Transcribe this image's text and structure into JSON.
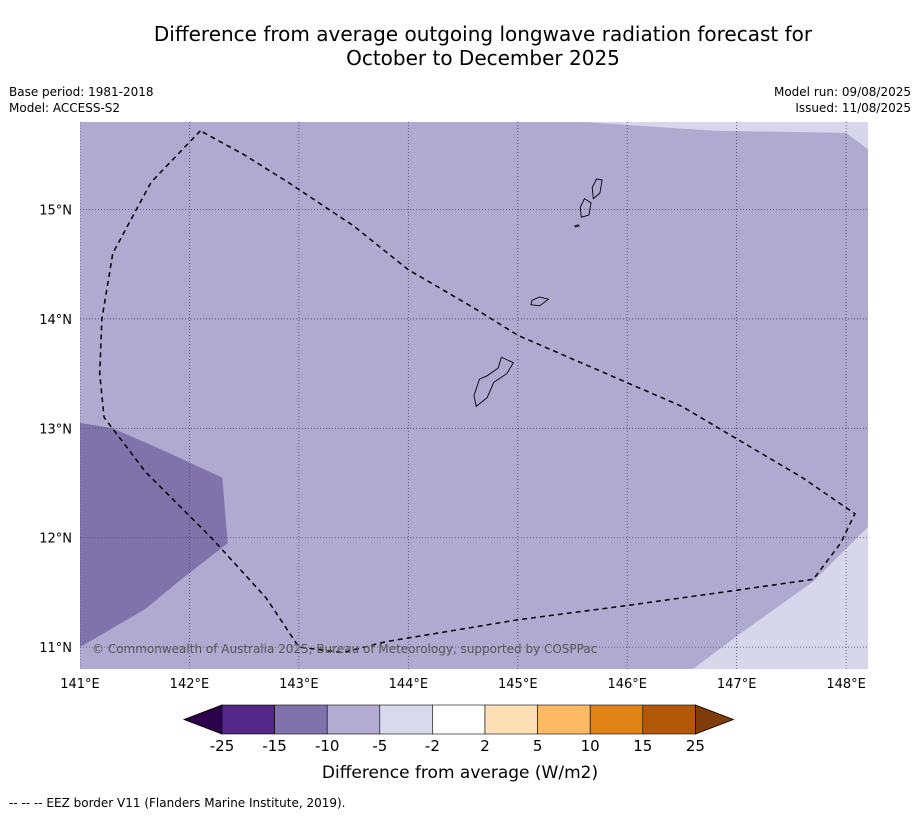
{
  "title": {
    "line1": "Difference from average outgoing longwave radiation forecast for",
    "line2": "October to December 2025"
  },
  "info": {
    "base_period": "Base period: 1981-2018",
    "model": "Model: ACCESS-S2",
    "model_run": "Model run: 09/08/2025",
    "issued": "Issued: 11/08/2025"
  },
  "map": {
    "lon_range": [
      141.0,
      148.2
    ],
    "lat_range": [
      10.8,
      15.8
    ],
    "lon_ticks": [
      {
        "value": 141,
        "label": "141°E"
      },
      {
        "value": 142,
        "label": "142°E"
      },
      {
        "value": 143,
        "label": "143°E"
      },
      {
        "value": 144,
        "label": "144°E"
      },
      {
        "value": 145,
        "label": "145°E"
      },
      {
        "value": 146,
        "label": "146°E"
      },
      {
        "value": 147,
        "label": "147°E"
      },
      {
        "value": 148,
        "label": "148°E"
      }
    ],
    "lat_ticks": [
      {
        "value": 15,
        "label": "15°N"
      },
      {
        "value": 14,
        "label": "14°N"
      },
      {
        "value": 13,
        "label": "13°N"
      },
      {
        "value": 12,
        "label": "12°N"
      },
      {
        "value": 11,
        "label": "11°N"
      }
    ],
    "gridlines": true,
    "background_category": "-10 to -5",
    "copyright": "© Commonwealth of Australia 2025, Bureau of Meteorology, supported by COSPPac",
    "eez_border": [
      [
        142.1,
        15.72
      ],
      [
        141.65,
        15.25
      ],
      [
        141.3,
        14.6
      ],
      [
        141.2,
        14.0
      ],
      [
        141.18,
        13.5
      ],
      [
        141.22,
        13.1
      ],
      [
        141.6,
        12.6
      ],
      [
        142.2,
        12.0
      ],
      [
        142.7,
        11.45
      ],
      [
        143.0,
        11.0
      ],
      [
        143.4,
        10.95
      ],
      [
        143.8,
        11.05
      ],
      [
        145.0,
        11.25
      ],
      [
        146.0,
        11.38
      ],
      [
        147.0,
        11.52
      ],
      [
        147.7,
        11.62
      ],
      [
        147.95,
        11.95
      ],
      [
        148.08,
        12.22
      ],
      [
        147.6,
        12.55
      ],
      [
        146.5,
        13.2
      ],
      [
        145.0,
        13.85
      ],
      [
        144.6,
        14.1
      ],
      [
        144.0,
        14.45
      ],
      [
        143.5,
        14.85
      ],
      [
        142.9,
        15.25
      ],
      [
        142.5,
        15.5
      ],
      [
        142.1,
        15.72
      ]
    ],
    "regions": [
      {
        "category": "-15 to -10",
        "color": "#8073ac",
        "polygon": [
          [
            141.0,
            13.05
          ],
          [
            141.3,
            13.0
          ],
          [
            141.8,
            12.78
          ],
          [
            142.3,
            12.55
          ],
          [
            142.35,
            11.95
          ],
          [
            141.9,
            11.6
          ],
          [
            141.6,
            11.35
          ],
          [
            141.0,
            11.0
          ]
        ]
      },
      {
        "category": "-5 to -2",
        "color": "#d8d6ea",
        "polygon": [
          [
            146.6,
            10.8
          ],
          [
            147.0,
            11.1
          ],
          [
            147.7,
            11.6
          ],
          [
            148.2,
            12.1
          ],
          [
            148.2,
            10.8
          ]
        ]
      },
      {
        "category": "-5 to -2",
        "color": "#d8d6ea",
        "polygon": [
          [
            145.6,
            15.8
          ],
          [
            146.8,
            15.72
          ],
          [
            148.0,
            15.7
          ],
          [
            148.2,
            15.55
          ],
          [
            148.2,
            15.8
          ]
        ]
      }
    ],
    "islands": [
      {
        "name": "Guam",
        "polygon": [
          [
            144.62,
            13.2
          ],
          [
            144.72,
            13.28
          ],
          [
            144.78,
            13.42
          ],
          [
            144.9,
            13.5
          ],
          [
            144.96,
            13.6
          ],
          [
            144.85,
            13.65
          ],
          [
            144.82,
            13.55
          ],
          [
            144.72,
            13.48
          ],
          [
            144.65,
            13.45
          ],
          [
            144.6,
            13.3
          ]
        ]
      },
      {
        "name": "Rota",
        "polygon": [
          [
            145.12,
            14.13
          ],
          [
            145.2,
            14.12
          ],
          [
            145.28,
            14.18
          ],
          [
            145.2,
            14.2
          ],
          [
            145.13,
            14.17
          ]
        ]
      },
      {
        "name": "Tinian",
        "polygon": [
          [
            145.58,
            14.93
          ],
          [
            145.65,
            14.95
          ],
          [
            145.67,
            15.06
          ],
          [
            145.61,
            15.1
          ],
          [
            145.57,
            15.02
          ]
        ]
      },
      {
        "name": "Saipan",
        "polygon": [
          [
            145.69,
            15.1
          ],
          [
            145.75,
            15.15
          ],
          [
            145.77,
            15.27
          ],
          [
            145.72,
            15.28
          ],
          [
            145.68,
            15.2
          ]
        ]
      },
      {
        "name": "Aguijan",
        "polygon": [
          [
            145.53,
            14.84
          ],
          [
            145.56,
            14.85
          ],
          [
            145.55,
            14.86
          ],
          [
            145.52,
            14.85
          ]
        ]
      }
    ]
  },
  "colorbar": {
    "label": "Difference from average (W/m2)",
    "colors": [
      "#2d004b",
      "#542788",
      "#8073ac",
      "#b2abd2",
      "#d8daeb",
      "#ffffff",
      "#fee0b6",
      "#fdb863",
      "#e08214",
      "#b35806",
      "#7f3b08"
    ],
    "ticks": [
      "-25",
      "-15",
      "-10",
      "-5",
      "-2",
      "2",
      "5",
      "10",
      "15",
      "25"
    ]
  },
  "footnote": "--  --  -- EEZ border V11 (Flanders Marine Institute, 2019)."
}
